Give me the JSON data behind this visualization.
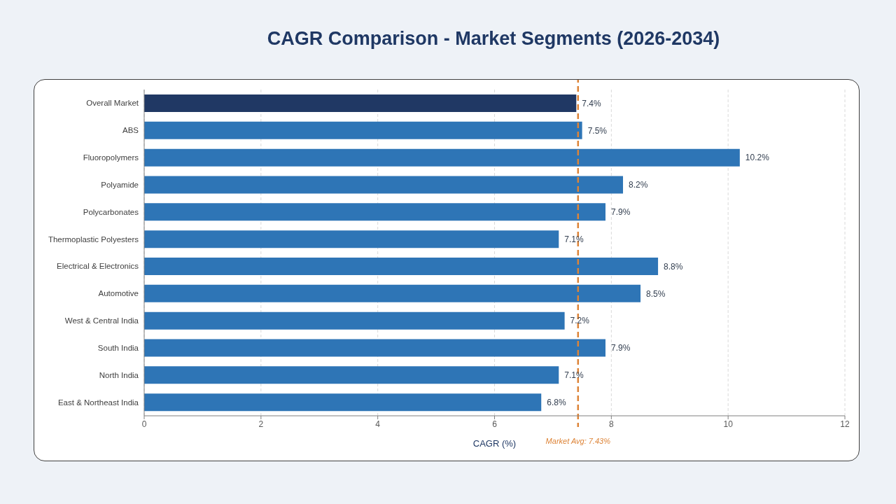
{
  "chart_data": {
    "type": "bar",
    "orientation": "horizontal",
    "title": "CAGR Comparison - Market Segments (2026-2034)",
    "xlabel": "CAGR (%)",
    "categories": [
      "Overall Market",
      "ABS",
      "Fluoropolymers",
      "Polyamide",
      "Polycarbonates",
      "Thermoplastic Polyesters",
      "Electrical & Electronics",
      "Automotive",
      "West & Central India",
      "South India",
      "North India",
      "East & Northeast India"
    ],
    "values": [
      7.4,
      7.5,
      10.2,
      8.2,
      7.9,
      7.1,
      8.8,
      8.5,
      7.2,
      7.9,
      7.1,
      6.8
    ],
    "colors": [
      "#203864",
      "#2e75b6",
      "#2e75b6",
      "#2e75b6",
      "#2e75b6",
      "#2e75b6",
      "#2e75b6",
      "#2e75b6",
      "#2e75b6",
      "#2e75b6",
      "#2e75b6",
      "#2e75b6"
    ],
    "value_labels": [
      "7.4%",
      "7.5%",
      "10.2%",
      "8.2%",
      "7.9%",
      "7.1%",
      "8.8%",
      "8.5%",
      "7.2%",
      "7.9%",
      "7.1%",
      "6.8%"
    ],
    "xlim": [
      0,
      12
    ],
    "xticks": [
      0,
      2,
      4,
      6,
      8,
      10,
      12
    ],
    "grid": "x",
    "ref_lines": [
      {
        "axis": "x",
        "value": 7.43,
        "label": "Market Avg: 7.43%",
        "color": "#dd8438",
        "line_style": "dashed"
      }
    ]
  }
}
